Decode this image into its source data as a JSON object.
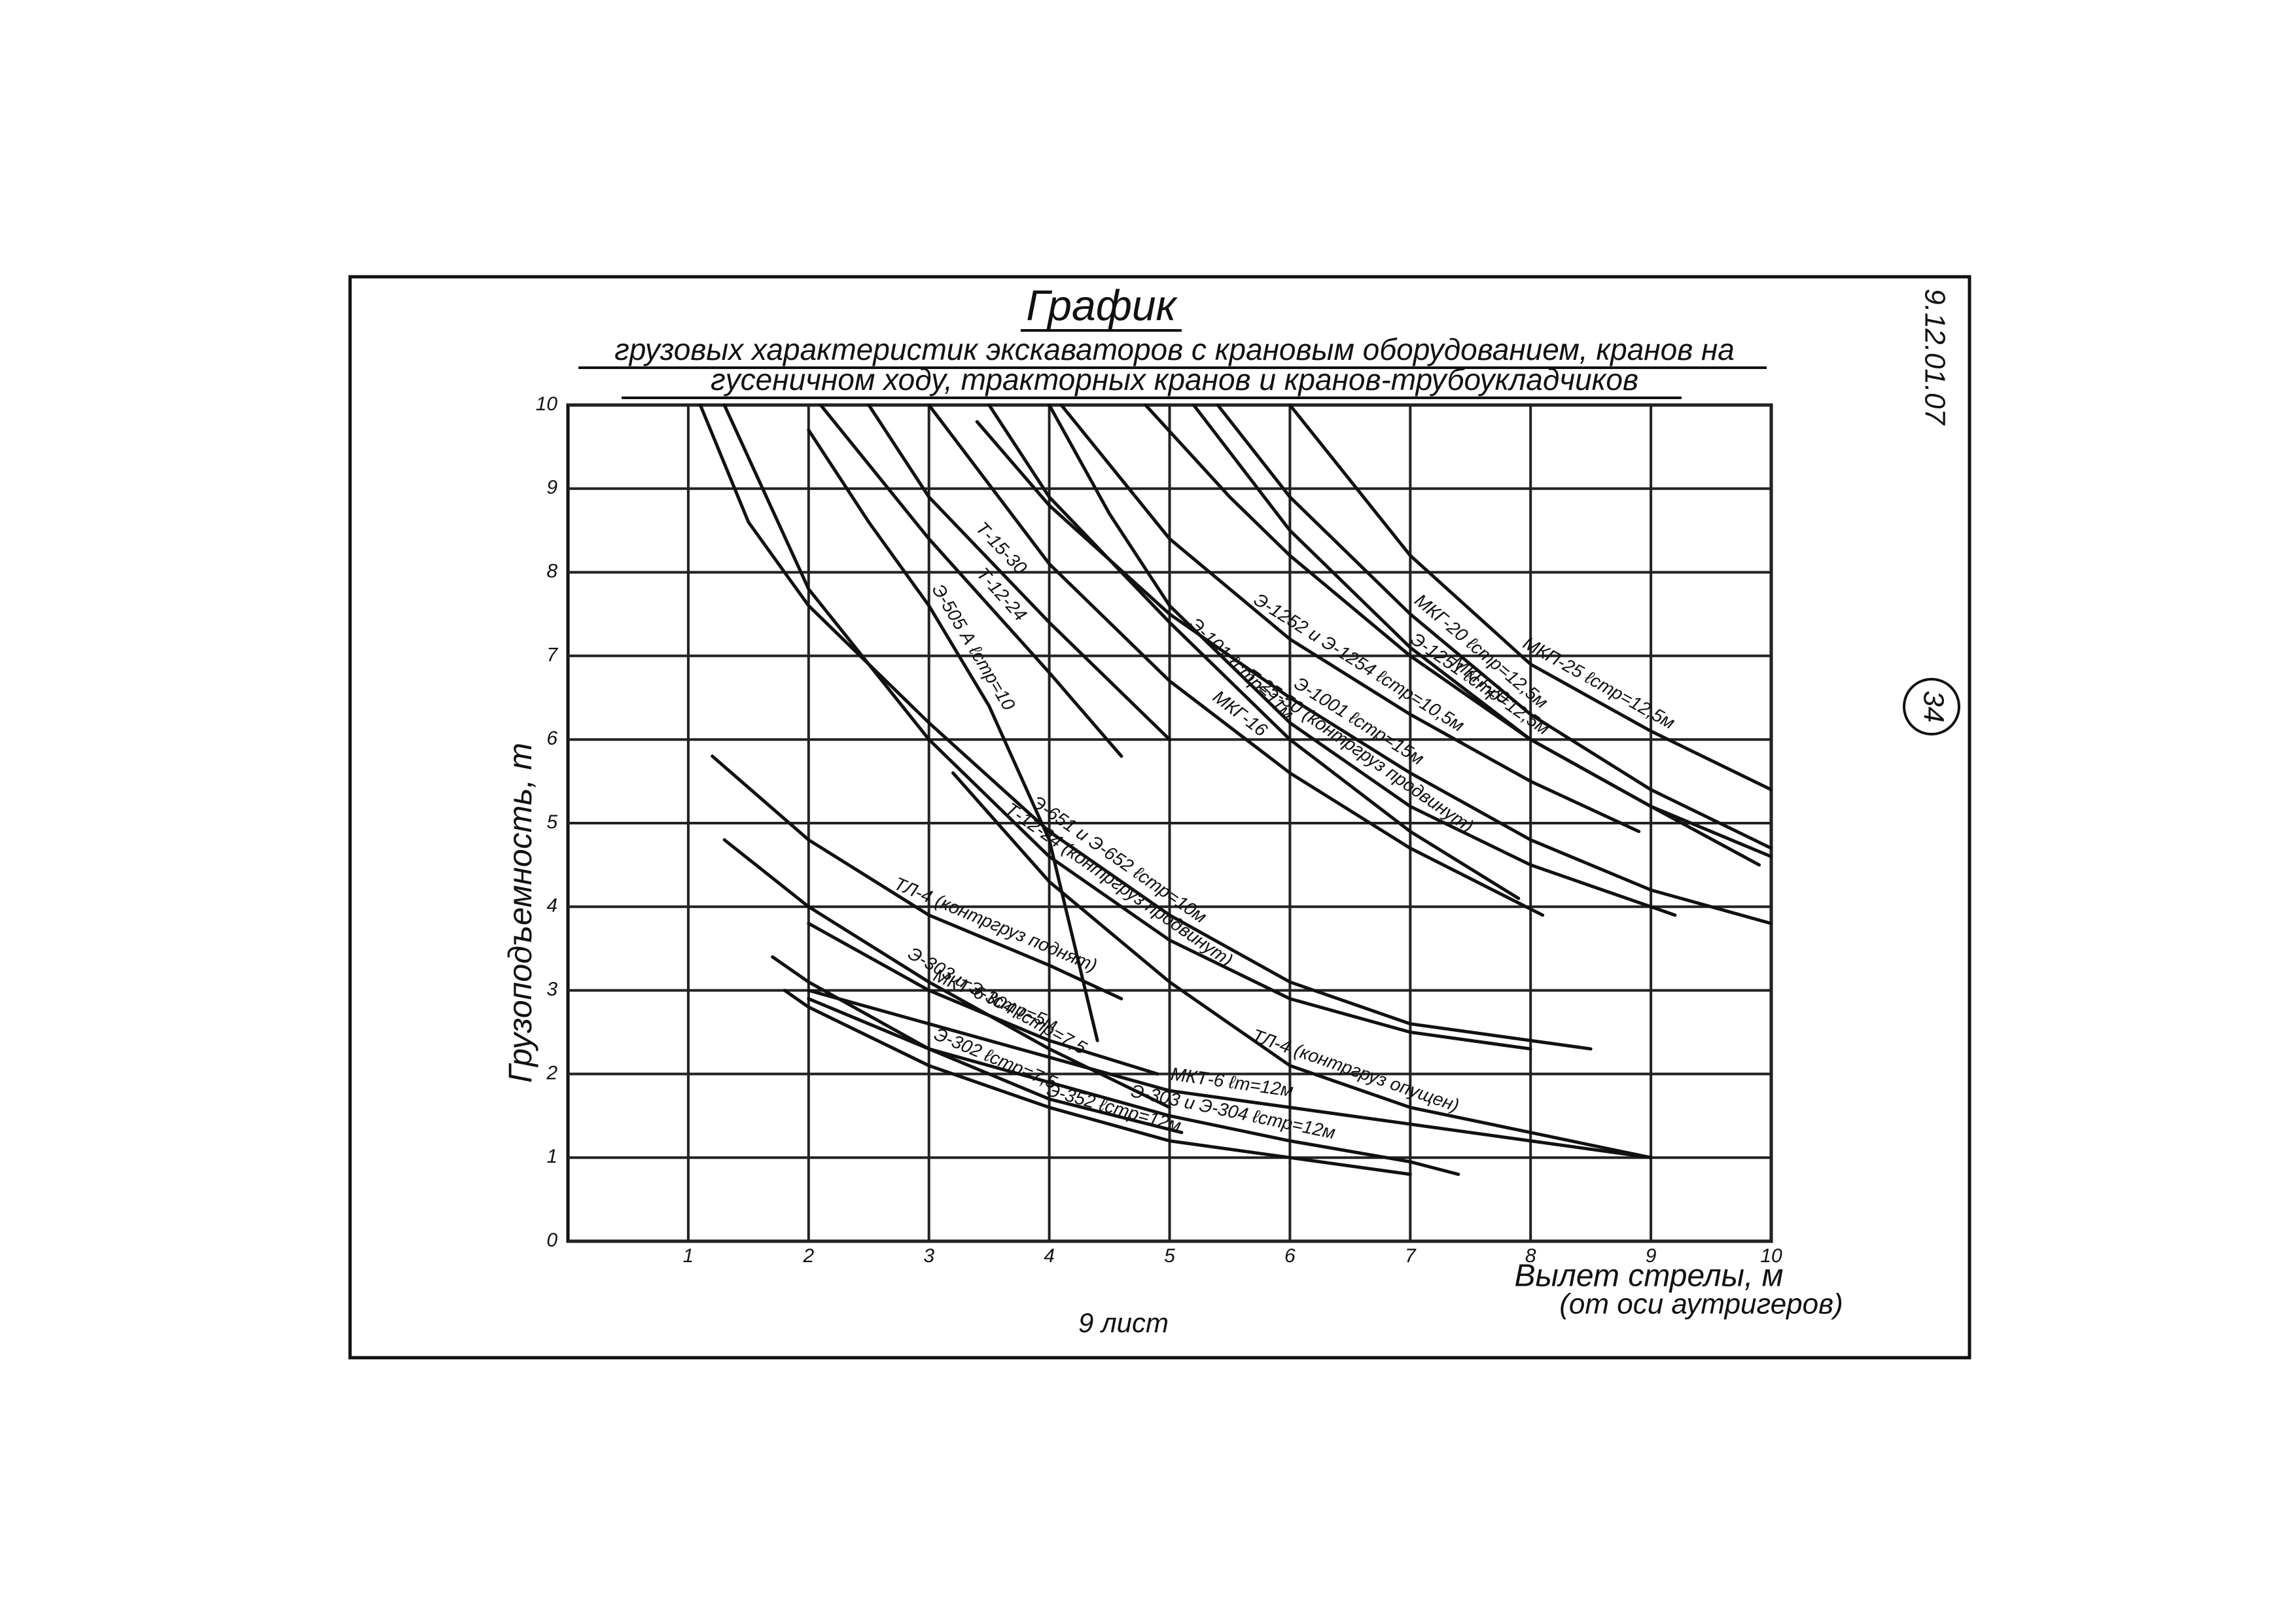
{
  "chart_data": {
    "type": "line",
    "title": "График",
    "subtitle": [
      "грузовых характеристик экскаваторов с крановым оборудованием, кранов на",
      "гусеничном ходу, тракторных кранов и кранов-трубоукладчиков"
    ],
    "y_label": "Грузоподъемность, т",
    "x_label": "Вылет стрелы, м",
    "x_label_note": "(от оси аутригеров)",
    "sheet_note": "9 лист",
    "doc_code": "9.12.01.07",
    "page_number": "34",
    "xlim": [
      0,
      10
    ],
    "ylim": [
      0,
      10
    ],
    "xticks": [
      1,
      2,
      3,
      4,
      5,
      6,
      7,
      8,
      9,
      10
    ],
    "yticks": [
      0,
      1,
      2,
      3,
      4,
      5,
      6,
      7,
      8,
      9,
      10
    ],
    "grid": true,
    "color": "#111111",
    "series": [
      {
        "name": "МКП-25 ℓстр=12,5м",
        "x": [
          6,
          7,
          8,
          9,
          10
        ],
        "values": [
          10,
          8.2,
          6.9,
          6.1,
          5.4
        ]
      },
      {
        "name": "МКГ-20 ℓстр=12,5м",
        "x": [
          5.4,
          6,
          7,
          8,
          9,
          10
        ],
        "values": [
          10,
          8.9,
          7.5,
          6.3,
          5.4,
          4.7
        ]
      },
      {
        "name": "МКП-20",
        "x": [
          5.2,
          6,
          7,
          8,
          9,
          10
        ],
        "values": [
          10,
          8.5,
          7.1,
          6.0,
          5.2,
          4.6
        ]
      },
      {
        "name": "Э-1251 ℓстр=12,5м",
        "x": [
          4.8,
          5.5,
          6,
          7,
          8,
          9,
          9.9
        ],
        "values": [
          10,
          8.9,
          8.2,
          7.0,
          6.0,
          5.2,
          4.5
        ]
      },
      {
        "name": "Э-1252 и Э-1254 ℓстр=10,5м",
        "x": [
          4.1,
          5,
          6,
          7,
          8,
          8.9
        ],
        "values": [
          10,
          8.4,
          7.2,
          6.3,
          5.5,
          4.9
        ]
      },
      {
        "name": "Т-25-50 (контргруз продвинут)",
        "x": [
          4.0,
          4.5,
          5,
          6,
          7,
          8,
          9.2
        ],
        "values": [
          10,
          8.7,
          7.6,
          6.2,
          5.2,
          4.5,
          3.9
        ]
      },
      {
        "name": "Э-101 ℓстр=11м",
        "x": [
          3.5,
          4,
          5,
          6,
          7,
          7.9
        ],
        "values": [
          10,
          8.9,
          7.4,
          6.0,
          4.9,
          4.1
        ]
      },
      {
        "name": "Э-1001 ℓстр=15м",
        "x": [
          3.4,
          4,
          5,
          6,
          7,
          8,
          9,
          10
        ],
        "values": [
          9.8,
          8.8,
          7.5,
          6.5,
          5.6,
          4.8,
          4.2,
          3.8
        ]
      },
      {
        "name": "МКГ-16",
        "x": [
          3.0,
          4,
          5,
          6,
          7,
          8.1
        ],
        "values": [
          10,
          8.1,
          6.7,
          5.6,
          4.7,
          3.9
        ]
      },
      {
        "name": "Т-15-30",
        "x": [
          2.5,
          3,
          4,
          5
        ],
        "values": [
          10,
          8.9,
          7.4,
          6.0
        ]
      },
      {
        "name": "Т-12-24",
        "x": [
          2.1,
          3,
          4,
          4.6
        ],
        "values": [
          10,
          8.4,
          6.8,
          5.8
        ]
      },
      {
        "name": "Э-505 А ℓстр=10",
        "x": [
          2.0,
          2.5,
          3,
          3.5,
          4,
          4.4
        ],
        "values": [
          9.7,
          8.6,
          7.6,
          6.4,
          4.8,
          2.4
        ]
      },
      {
        "name": "Э-651 и Э-652 ℓстр=10м",
        "x": [
          1.1,
          1.5,
          2,
          3,
          4,
          5,
          6,
          7,
          8.5
        ],
        "values": [
          10,
          8.6,
          7.6,
          6.2,
          4.9,
          3.9,
          3.1,
          2.6,
          2.3
        ]
      },
      {
        "name": "Т-12-24 (контргруз продвинут)",
        "x": [
          1.3,
          2,
          3,
          4,
          5,
          6,
          7,
          8
        ],
        "values": [
          10,
          7.8,
          6.0,
          4.6,
          3.6,
          2.9,
          2.5,
          2.3
        ]
      },
      {
        "name": "ТЛ-4 (контргруз поднят)",
        "x": [
          1.2,
          2,
          3,
          4,
          4.6
        ],
        "values": [
          5.8,
          4.8,
          3.9,
          3.3,
          2.9
        ]
      },
      {
        "name": "ТЛ-4 (контргруз опущен)",
        "x": [
          3.2,
          4,
          5,
          6,
          7,
          8,
          9
        ],
        "values": [
          5.6,
          4.3,
          3.1,
          2.1,
          1.6,
          1.3,
          1.0
        ]
      },
      {
        "name": "Э-303 и Э-304 ℓстр=7,5",
        "x": [
          1.3,
          2,
          3,
          4,
          5
        ],
        "values": [
          4.8,
          4.0,
          3.1,
          2.3,
          1.6
        ]
      },
      {
        "name": "МКТ-6 ℓстр=5м",
        "x": [
          2,
          3,
          4,
          4.9
        ],
        "values": [
          3.8,
          3.0,
          2.4,
          2.0
        ]
      },
      {
        "name": "МКТ-6 ℓm=12м",
        "x": [
          2,
          3,
          4,
          5,
          6,
          7,
          8,
          9
        ],
        "values": [
          3.0,
          2.6,
          2.2,
          1.8,
          1.6,
          1.4,
          1.2,
          1.0
        ]
      },
      {
        "name": "Э-303 и Э-304 ℓстр=12м",
        "x": [
          2,
          3,
          4,
          5,
          6,
          7,
          7.4
        ],
        "values": [
          2.9,
          2.3,
          1.9,
          1.5,
          1.2,
          0.95,
          0.8
        ]
      },
      {
        "name": "Э-302 ℓстр=7,5",
        "x": [
          1.7,
          2,
          3,
          4,
          5.1
        ],
        "values": [
          3.4,
          3.1,
          2.3,
          1.7,
          1.3
        ]
      },
      {
        "name": "Э-352 ℓстр=12м",
        "x": [
          1.8,
          2,
          3,
          4,
          5,
          6,
          7
        ],
        "values": [
          3.0,
          2.8,
          2.1,
          1.6,
          1.2,
          1.0,
          0.8
        ]
      }
    ]
  }
}
